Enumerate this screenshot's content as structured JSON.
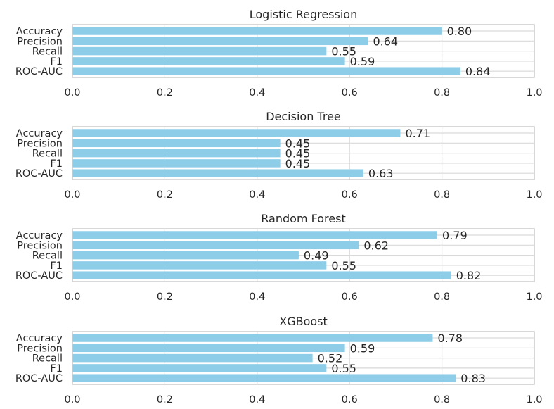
{
  "chart_data": [
    {
      "type": "bar",
      "orientation": "horizontal",
      "title": "Logistic Regression",
      "categories": [
        "Accuracy",
        "Precision",
        "Recall",
        "F1",
        "ROC-AUC"
      ],
      "values": [
        0.8,
        0.64,
        0.55,
        0.59,
        0.84
      ],
      "value_labels": [
        "0.80",
        "0.64",
        "0.55",
        "0.59",
        "0.84"
      ],
      "xlim": [
        0,
        1
      ],
      "xticks": [
        "0.0",
        "0.2",
        "0.4",
        "0.6",
        "0.8",
        "1.0"
      ],
      "grid": true,
      "bar_color": "#8ecde8"
    },
    {
      "type": "bar",
      "orientation": "horizontal",
      "title": "Decision Tree",
      "categories": [
        "Accuracy",
        "Precision",
        "Recall",
        "F1",
        "ROC-AUC"
      ],
      "values": [
        0.71,
        0.45,
        0.45,
        0.45,
        0.63
      ],
      "value_labels": [
        "0.71",
        "0.45",
        "0.45",
        "0.45",
        "0.63"
      ],
      "xlim": [
        0,
        1
      ],
      "xticks": [
        "0.0",
        "0.2",
        "0.4",
        "0.6",
        "0.8",
        "1.0"
      ],
      "grid": true,
      "bar_color": "#8ecde8"
    },
    {
      "type": "bar",
      "orientation": "horizontal",
      "title": "Random Forest",
      "categories": [
        "Accuracy",
        "Precision",
        "Recall",
        "F1",
        "ROC-AUC"
      ],
      "values": [
        0.79,
        0.62,
        0.49,
        0.55,
        0.82
      ],
      "value_labels": [
        "0.79",
        "0.62",
        "0.49",
        "0.55",
        "0.82"
      ],
      "xlim": [
        0,
        1
      ],
      "xticks": [
        "0.0",
        "0.2",
        "0.4",
        "0.6",
        "0.8",
        "1.0"
      ],
      "grid": true,
      "bar_color": "#8ecde8"
    },
    {
      "type": "bar",
      "orientation": "horizontal",
      "title": "XGBoost",
      "categories": [
        "Accuracy",
        "Precision",
        "Recall",
        "F1",
        "ROC-AUC"
      ],
      "values": [
        0.78,
        0.59,
        0.52,
        0.55,
        0.83
      ],
      "value_labels": [
        "0.78",
        "0.59",
        "0.52",
        "0.55",
        "0.83"
      ],
      "xlim": [
        0,
        1
      ],
      "xticks": [
        "0.0",
        "0.2",
        "0.4",
        "0.6",
        "0.8",
        "1.0"
      ],
      "grid": true,
      "bar_color": "#8ecde8"
    }
  ]
}
